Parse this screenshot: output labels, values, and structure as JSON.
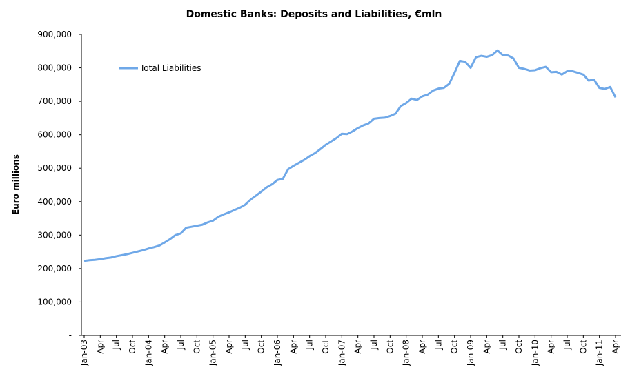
{
  "chart_data": {
    "type": "line",
    "title": "Domestic Banks: Deposits and Liabilities, €mln",
    "y_label": "Euro millions",
    "categories": [
      "Jan-03",
      null,
      null,
      "Apr",
      null,
      null,
      "Jul",
      null,
      null,
      "Oct",
      null,
      null,
      "Jan-04",
      null,
      null,
      "Apr",
      null,
      null,
      "Jul",
      null,
      null,
      "Oct",
      null,
      null,
      "Jan-05",
      null,
      null,
      "Apr",
      null,
      null,
      "Jul",
      null,
      null,
      "Oct",
      null,
      null,
      "Jan-06",
      null,
      null,
      "Apr",
      null,
      null,
      "Jul",
      null,
      null,
      "Oct",
      null,
      null,
      "Jan-07",
      null,
      null,
      "Apr",
      null,
      null,
      "Jul",
      null,
      null,
      "Oct",
      null,
      null,
      "Jan-08",
      null,
      null,
      "Apr",
      null,
      null,
      "Jul",
      null,
      null,
      "Oct",
      null,
      null,
      "Jan-09",
      null,
      null,
      "Apr",
      null,
      null,
      "Jul",
      null,
      null,
      "Oct",
      null,
      null,
      "Jan-10",
      null,
      null,
      "Apr",
      null,
      null,
      "Jul",
      null,
      null,
      "Oct",
      null,
      null,
      "Jan-11",
      null,
      null,
      "Apr"
    ],
    "series": [
      {
        "name": "Total Liabilities",
        "color": "#6fa8e8",
        "values": [
          223000,
          225000,
          226000,
          228000,
          231000,
          233000,
          237000,
          240000,
          243000,
          247000,
          251000,
          255000,
          260000,
          264000,
          269000,
          278000,
          288000,
          300000,
          305000,
          322000,
          325000,
          328000,
          331000,
          338000,
          343000,
          355000,
          362000,
          368000,
          375000,
          382000,
          391000,
          406000,
          418000,
          430000,
          443000,
          452000,
          465000,
          468000,
          497000,
          507000,
          516000,
          525000,
          536000,
          545000,
          557000,
          570000,
          580000,
          590000,
          603000,
          602000,
          610000,
          620000,
          628000,
          634000,
          648000,
          650000,
          651000,
          656000,
          663000,
          686000,
          695000,
          708000,
          704000,
          715000,
          720000,
          732000,
          738000,
          740000,
          752000,
          785000,
          821000,
          818000,
          800000,
          832000,
          836000,
          833000,
          838000,
          852000,
          838000,
          837000,
          828000,
          800000,
          797000,
          792000,
          793000,
          799000,
          803000,
          787000,
          788000,
          780000,
          790000,
          790000,
          785000,
          780000,
          762000,
          765000,
          740000,
          737000,
          743000,
          712000
        ]
      }
    ],
    "ylim": [
      0,
      900000
    ],
    "yticks": [
      {
        "value": 0,
        "label": "-"
      },
      {
        "value": 100000,
        "label": "100,000"
      },
      {
        "value": 200000,
        "label": "200,000"
      },
      {
        "value": 300000,
        "label": "300,000"
      },
      {
        "value": 400000,
        "label": "400,000"
      },
      {
        "value": 500000,
        "label": "500,000"
      },
      {
        "value": 600000,
        "label": "600,000"
      },
      {
        "value": 700000,
        "label": "700,000"
      },
      {
        "value": 800000,
        "label": "800,000"
      },
      {
        "value": 900000,
        "label": "900,000"
      }
    ],
    "grid": false,
    "legend": "upper left"
  }
}
